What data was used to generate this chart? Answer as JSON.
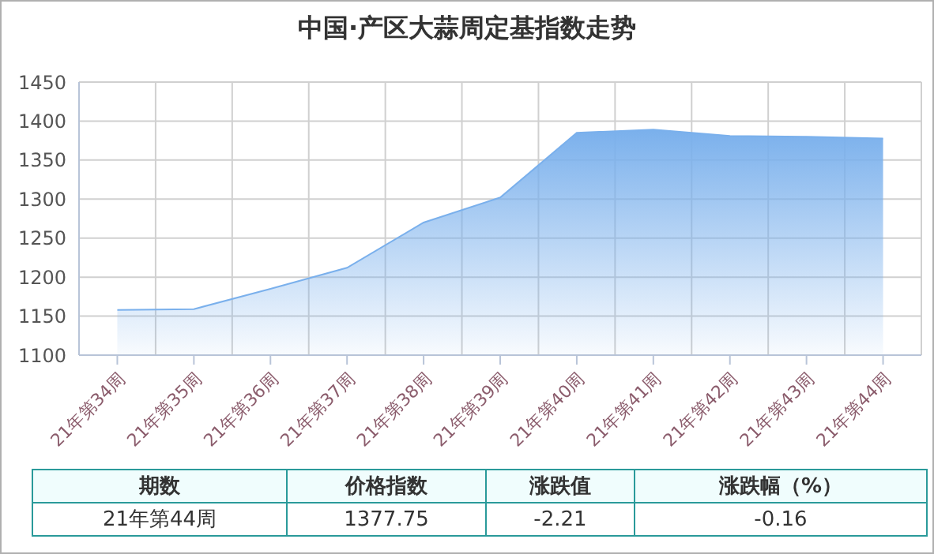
{
  "chart_data": {
    "type": "area",
    "title": "中国·产区大蒜周定基指数走势",
    "categories": [
      "21年第34周",
      "21年第35周",
      "21年第36周",
      "21年第37周",
      "21年第38周",
      "21年第39周",
      "21年第40周",
      "21年第41周",
      "21年第42周",
      "21年第43周",
      "21年第44周"
    ],
    "series": [
      {
        "color": "#7ab0ec",
        "values": [
          1158,
          1159,
          1185,
          1212,
          1270,
          1302,
          1385,
          1389,
          1381,
          1380,
          1377.75
        ]
      }
    ],
    "ylim": [
      1100,
      1450
    ],
    "yticks": [
      1100,
      1150,
      1200,
      1250,
      1300,
      1350,
      1400,
      1450
    ],
    "grid": true,
    "legend": false,
    "marker": "none",
    "annotations": [
      "期数",
      "价格指数",
      "涨跌值",
      "涨跌幅（%）",
      "21年第44周",
      "1377.75",
      "-2.21",
      "-0.16"
    ]
  }
}
